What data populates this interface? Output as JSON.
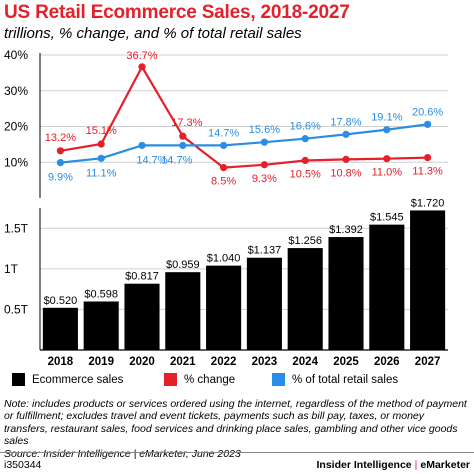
{
  "header": {
    "title": "US Retail Ecommerce Sales, 2018-2027",
    "subtitle": "trillions, % change, and % of total retail sales"
  },
  "chart_data": [
    {
      "type": "line",
      "x": [
        "2018",
        "2019",
        "2020",
        "2021",
        "2022",
        "2023",
        "2024",
        "2025",
        "2026",
        "2027"
      ],
      "ylim": [
        0,
        40
      ],
      "yticks": [
        10,
        20,
        30,
        40
      ],
      "ytick_labels": [
        "10%",
        "20%",
        "30%",
        "40%"
      ],
      "grid": true,
      "series": [
        {
          "name": "% change",
          "color": "#e4202a",
          "values": [
            13.2,
            15.1,
            36.7,
            17.3,
            8.5,
            9.3,
            10.5,
            10.8,
            11.0,
            11.3
          ],
          "labels": [
            "13.2%",
            "15.1%",
            "36.7%",
            "17.3%",
            "8.5%",
            "9.3%",
            "10.5%",
            "10.8%",
            "11.0%",
            "11.3%"
          ]
        },
        {
          "name": "% of total retail sales",
          "color": "#2b8de3",
          "values": [
            9.9,
            11.1,
            14.7,
            14.7,
            14.7,
            15.6,
            16.6,
            17.8,
            19.1,
            20.6
          ],
          "labels": [
            "9.9%",
            "11.1%",
            "14.7%",
            "14.7%",
            "14.7%",
            "15.6%",
            "16.6%",
            "17.8%",
            "19.1%",
            "20.6%"
          ]
        }
      ]
    },
    {
      "type": "bar",
      "categories": [
        "2018",
        "2019",
        "2020",
        "2021",
        "2022",
        "2023",
        "2024",
        "2025",
        "2026",
        "2027"
      ],
      "ylim": [
        0,
        1.75
      ],
      "yticks": [
        0.5,
        1.0,
        1.5
      ],
      "ytick_labels": [
        "0.5T",
        "1T",
        "1.5T"
      ],
      "grid": true,
      "series": [
        {
          "name": "Ecommerce sales",
          "color": "#000000",
          "values": [
            0.52,
            0.598,
            0.817,
            0.959,
            1.04,
            1.137,
            1.256,
            1.392,
            1.545,
            1.72
          ],
          "labels": [
            "$0.520",
            "$0.598",
            "$0.817",
            "$0.959",
            "$1.040",
            "$1.137",
            "$1.256",
            "$1.392",
            "$1.545",
            "$1.720"
          ]
        }
      ]
    }
  ],
  "legend": [
    {
      "label": "Ecommerce sales",
      "color": "#000000"
    },
    {
      "label": "% change",
      "color": "#e4202a"
    },
    {
      "label": "% of total retail sales",
      "color": "#2b8de3"
    }
  ],
  "note": "Note: includes products or services ordered using the internet, regardless of the method of payment or fulfillment; excludes travel and event tickets, payments such as bill pay, taxes, or money transfers, restaurant sales, food services and drinking place sales, gambling and other vice goods sales",
  "source": "Source: Insider Intelligence | eMarketer, June 2023",
  "footer": {
    "id": "i350344",
    "brand_left": "Insider Intelligence",
    "brand_sep": "|",
    "brand_right": "eMarketer"
  }
}
